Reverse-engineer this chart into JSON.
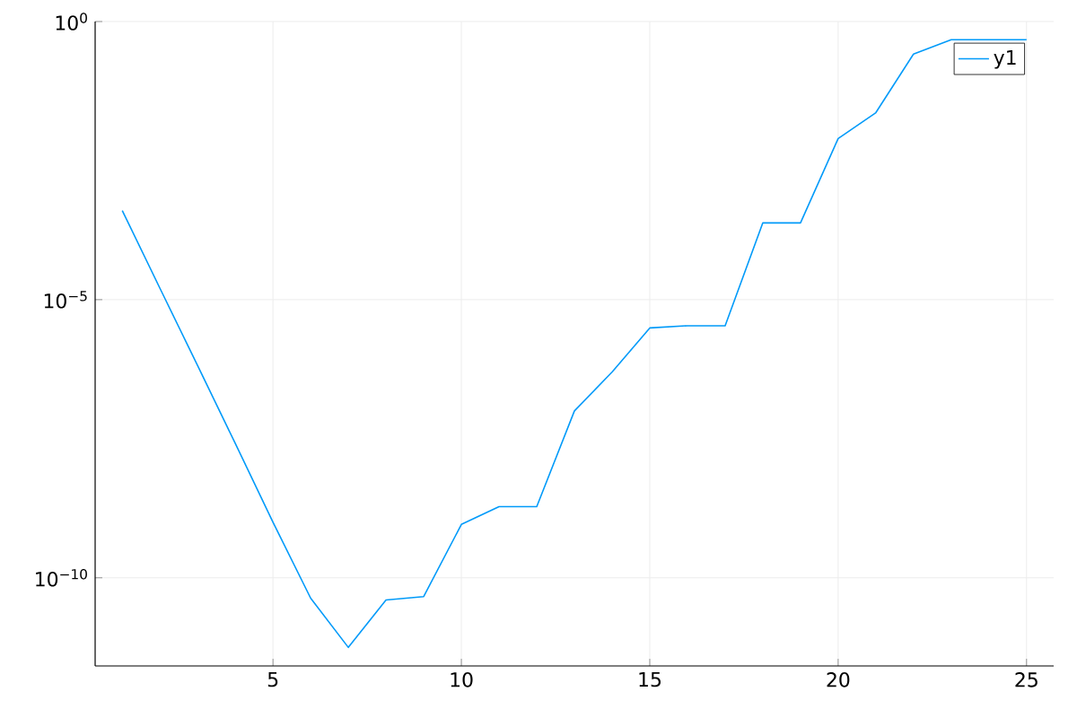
{
  "chart_data": {
    "type": "line",
    "log": "y",
    "grid": true,
    "legend": "top right",
    "x": [
      1,
      2,
      3,
      4,
      5,
      6,
      7,
      8,
      9,
      10,
      11,
      12,
      13,
      14,
      15,
      16,
      17,
      18,
      19,
      20,
      21,
      22,
      23,
      24,
      25
    ],
    "series": [
      {
        "name": "y1",
        "color": "#009af9",
        "values": [
          0.0004,
          1.6e-05,
          6.5e-07,
          2.6e-08,
          1e-09,
          4.3e-11,
          5.6e-12,
          4e-11,
          4.6e-11,
          9.1e-10,
          1.9e-09,
          1.9e-09,
          1e-07,
          5e-07,
          3.1e-06,
          3.4e-06,
          3.4e-06,
          0.00024,
          0.00024,
          0.0079,
          0.023,
          0.26,
          0.47,
          0.47,
          0.47
        ]
      }
    ],
    "xlim": [
      0.28,
      25.72
    ],
    "xticks": [
      5,
      10,
      15,
      20,
      25
    ],
    "ylim": [
      2.6e-12,
      1
    ],
    "yticks": [
      {
        "value": 1e-10,
        "label": "10$^{−10}$"
      },
      {
        "value": 1e-05,
        "label": "10$^{−5}$"
      },
      {
        "value": 1,
        "label": "10$^{0}$"
      }
    ]
  }
}
